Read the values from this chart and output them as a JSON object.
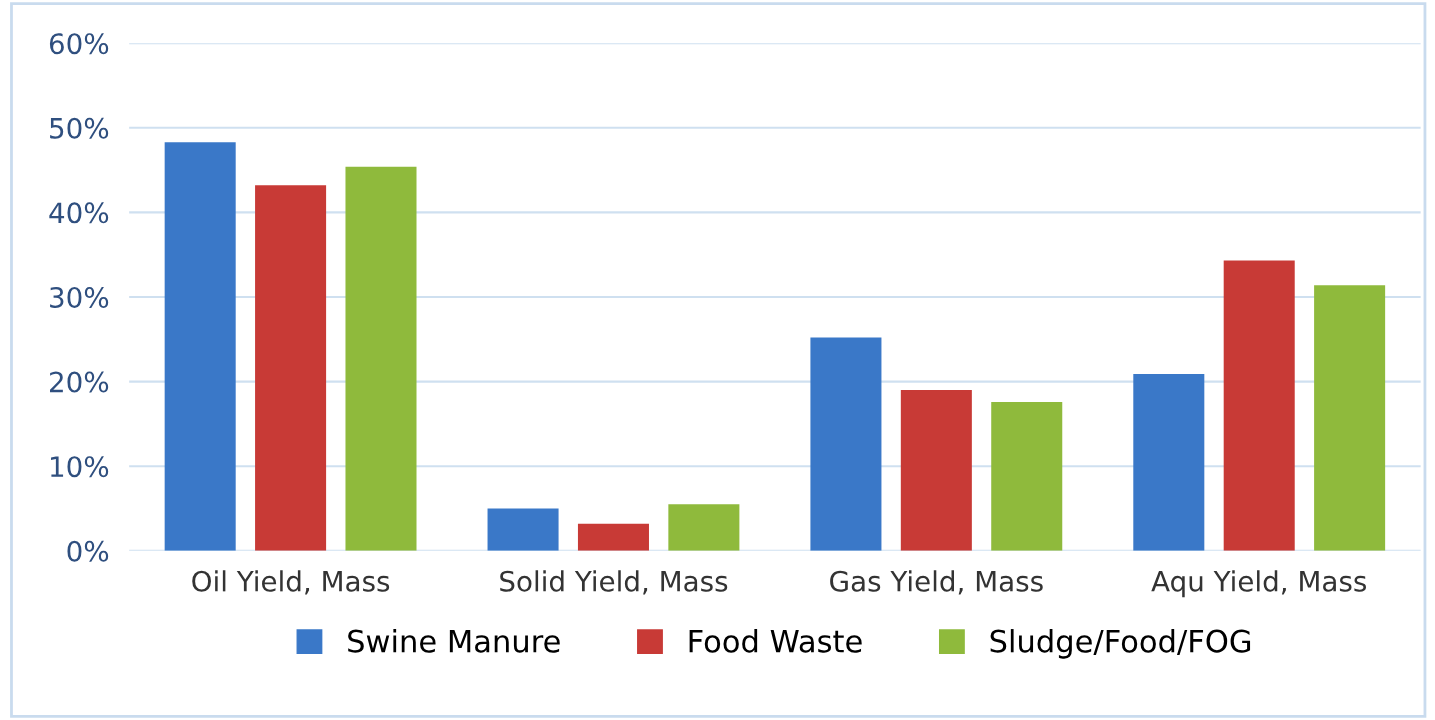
{
  "chart_data": {
    "type": "bar",
    "categories": [
      "Oil Yield, Mass",
      "Solid Yield, Mass",
      "Gas Yield, Mass",
      "Aqu Yield, Mass"
    ],
    "series": [
      {
        "name": "Swine Manure",
        "color": "#3a78c8",
        "values": [
          48.3,
          5.0,
          25.2,
          20.9
        ]
      },
      {
        "name": "Food Waste",
        "color": "#c83a36",
        "values": [
          43.2,
          3.2,
          19.0,
          34.3
        ]
      },
      {
        "name": "Sludge/Food/FOG",
        "color": "#8fba3c",
        "values": [
          45.4,
          5.5,
          17.6,
          31.4
        ]
      }
    ],
    "ylim": [
      0,
      60
    ],
    "yticks": [
      {
        "value": 0,
        "label": "0%"
      },
      {
        "value": 10,
        "label": "10%"
      },
      {
        "value": 20,
        "label": "20%"
      },
      {
        "value": 30,
        "label": "30%"
      },
      {
        "value": 40,
        "label": "40%"
      },
      {
        "value": 50,
        "label": "50%"
      },
      {
        "value": 60,
        "label": "60%"
      }
    ],
    "grid": "y",
    "legend": "bottom"
  }
}
